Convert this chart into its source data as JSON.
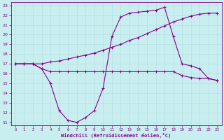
{
  "xlabel": "Windchill (Refroidissement éolien,°C)",
  "bg_color": "#c8eef0",
  "line_color": "#880088",
  "grid_color": "#b0dde0",
  "xlim": [
    -0.5,
    23.5
  ],
  "ylim": [
    10.7,
    23.3
  ],
  "yticks": [
    11,
    12,
    13,
    14,
    15,
    16,
    17,
    18,
    19,
    20,
    21,
    22,
    23
  ],
  "xticks": [
    0,
    1,
    2,
    3,
    4,
    5,
    6,
    7,
    8,
    9,
    10,
    11,
    12,
    13,
    14,
    15,
    16,
    17,
    18,
    19,
    20,
    21,
    22,
    23
  ],
  "line1_x": [
    0,
    1,
    2,
    3,
    4,
    5,
    6,
    7,
    8,
    9,
    10,
    11,
    12,
    13,
    14,
    15,
    16,
    17,
    18,
    19,
    20,
    21,
    22,
    23
  ],
  "line1_y": [
    17.0,
    17.0,
    17.0,
    17.0,
    17.2,
    17.3,
    17.5,
    17.7,
    17.9,
    18.1,
    18.4,
    18.7,
    19.0,
    19.4,
    19.7,
    20.1,
    20.5,
    20.9,
    21.3,
    21.6,
    21.9,
    22.1,
    22.2,
    22.2
  ],
  "line2_x": [
    0,
    1,
    2,
    3,
    4,
    5,
    6,
    7,
    8,
    9,
    10,
    11,
    12,
    13,
    14,
    15,
    16,
    17,
    18,
    19,
    20,
    21,
    22,
    23
  ],
  "line2_y": [
    17.0,
    17.0,
    17.0,
    16.5,
    16.2,
    16.2,
    16.2,
    16.2,
    16.2,
    16.2,
    16.2,
    16.2,
    16.2,
    16.2,
    16.2,
    16.2,
    16.2,
    16.2,
    16.2,
    15.8,
    15.6,
    15.5,
    15.5,
    15.3
  ],
  "line3_x": [
    0,
    1,
    2,
    3,
    4,
    5,
    6,
    7,
    8,
    9,
    10,
    11,
    12,
    13,
    14,
    15,
    16,
    17,
    18,
    19,
    20,
    21,
    22,
    23
  ],
  "line3_y": [
    17.0,
    17.0,
    17.0,
    16.5,
    15.0,
    12.2,
    11.2,
    11.0,
    11.5,
    12.2,
    14.5,
    19.8,
    21.8,
    22.2,
    22.3,
    22.4,
    22.5,
    22.8,
    19.8,
    17.0,
    16.8,
    16.5,
    15.5,
    15.3
  ]
}
